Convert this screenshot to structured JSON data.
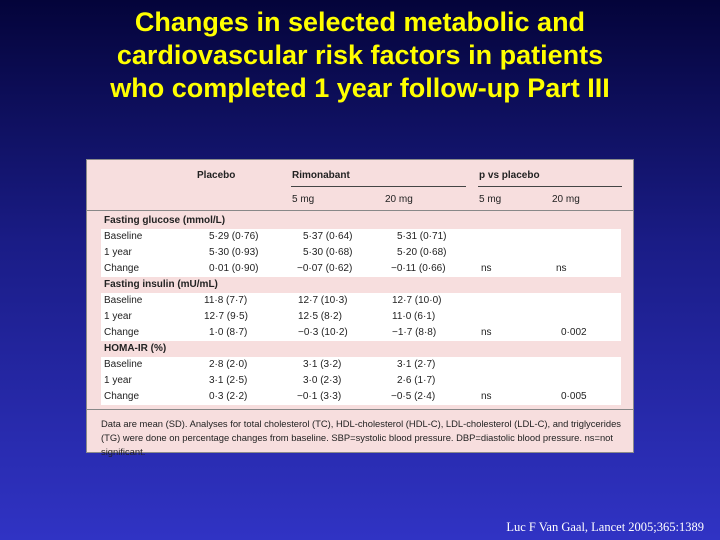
{
  "title": {
    "line1": "Changes in selected metabolic and",
    "line2": "cardiovascular risk factors in patients",
    "line3": "who completed 1 year follow-up Part III"
  },
  "table": {
    "header": {
      "placebo": "Placebo",
      "rimonabant": "Rimonabant",
      "pvs": "p vs placebo",
      "dose5": "5 mg",
      "dose20": "20 mg",
      "p5": "5 mg",
      "p20": "20 mg"
    },
    "sections": [
      {
        "name": "Fasting glucose (mmol/L)",
        "rows": [
          {
            "label": "Baseline",
            "placebo": "5·29 (0·76)",
            "r5": "5·37 (0·64)",
            "r20": "5·31 (0·71)",
            "p5": "",
            "p20": ""
          },
          {
            "label": "1 year",
            "placebo": "5·30 (0·93)",
            "r5": "5·30 (0·68)",
            "r20": "5·20 (0·68)",
            "p5": "",
            "p20": ""
          },
          {
            "label": "Change",
            "placebo": "0·01 (0·90)",
            "r5": "−0·07 (0·62)",
            "r20": "−0·11 (0·66)",
            "p5": "ns",
            "p20": "ns"
          }
        ]
      },
      {
        "name": "Fasting insulin (mU/mL)",
        "rows": [
          {
            "label": "Baseline",
            "placebo": "11·8 (7·7)",
            "r5": "12·7 (10·3)",
            "r20": "12·7 (10·0)",
            "p5": "",
            "p20": ""
          },
          {
            "label": "1 year",
            "placebo": "12·7 (9·5)",
            "r5": "12·5 (8·2)",
            "r20": "11·0 (6·1)",
            "p5": "",
            "p20": ""
          },
          {
            "label": "Change",
            "placebo": "1·0 (8·7)",
            "r5": "−0·3 (10·2)",
            "r20": "−1·7 (8·8)",
            "p5": "ns",
            "p20": "0·002"
          }
        ]
      },
      {
        "name": "HOMA-IR (%)",
        "rows": [
          {
            "label": "Baseline",
            "placebo": "2·8 (2·0)",
            "r5": "3·1 (3·2)",
            "r20": "3·1 (2·7)",
            "p5": "",
            "p20": ""
          },
          {
            "label": "1 year",
            "placebo": "3·1 (2·5)",
            "r5": "3·0 (2·3)",
            "r20": "2·6 (1·7)",
            "p5": "",
            "p20": ""
          },
          {
            "label": "Change",
            "placebo": "0·3 (2·2)",
            "r5": "−0·1 (3·3)",
            "r20": "−0·5 (2·4)",
            "p5": "ns",
            "p20": "0·005"
          }
        ]
      }
    ],
    "footnote": "Data are mean (SD). Analyses for total cholesterol (TC), HDL-cholesterol (HDL-C), LDL-cholesterol (LDL-C), and triglycerides (TG) were done on percentage changes from baseline. SBP=systolic blood pressure. DBP=diastolic blood pressure. ns=not significant."
  },
  "citation": "Luc F Van Gaal, Lancet 2005;365:1389"
}
